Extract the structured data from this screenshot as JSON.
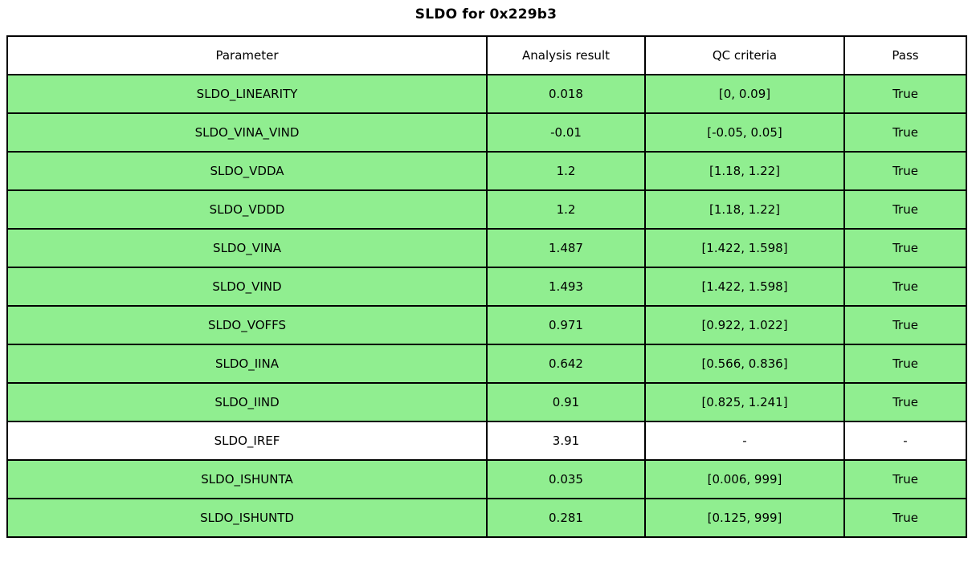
{
  "title": "SLDO for 0x229b3",
  "colors": {
    "pass_row_bg": "#90ee90",
    "neutral_row_bg": "#ffffff",
    "border": "#000000",
    "text": "#000000"
  },
  "table": {
    "headers": [
      "Parameter",
      "Analysis result",
      "QC criteria",
      "Pass"
    ],
    "rows": [
      {
        "parameter": "SLDO_LINEARITY",
        "result": "0.018",
        "qc": "[0, 0.09]",
        "pass": "True",
        "highlight": true
      },
      {
        "parameter": "SLDO_VINA_VIND",
        "result": "-0.01",
        "qc": "[-0.05, 0.05]",
        "pass": "True",
        "highlight": true
      },
      {
        "parameter": "SLDO_VDDA",
        "result": "1.2",
        "qc": "[1.18, 1.22]",
        "pass": "True",
        "highlight": true
      },
      {
        "parameter": "SLDO_VDDD",
        "result": "1.2",
        "qc": "[1.18, 1.22]",
        "pass": "True",
        "highlight": true
      },
      {
        "parameter": "SLDO_VINA",
        "result": "1.487",
        "qc": "[1.422, 1.598]",
        "pass": "True",
        "highlight": true
      },
      {
        "parameter": "SLDO_VIND",
        "result": "1.493",
        "qc": "[1.422, 1.598]",
        "pass": "True",
        "highlight": true
      },
      {
        "parameter": "SLDO_VOFFS",
        "result": "0.971",
        "qc": "[0.922, 1.022]",
        "pass": "True",
        "highlight": true
      },
      {
        "parameter": "SLDO_IINA",
        "result": "0.642",
        "qc": "[0.566, 0.836]",
        "pass": "True",
        "highlight": true
      },
      {
        "parameter": "SLDO_IIND",
        "result": "0.91",
        "qc": "[0.825, 1.241]",
        "pass": "True",
        "highlight": true
      },
      {
        "parameter": "SLDO_IREF",
        "result": "3.91",
        "qc": "-",
        "pass": "-",
        "highlight": false
      },
      {
        "parameter": "SLDO_ISHUNTA",
        "result": "0.035",
        "qc": "[0.006, 999]",
        "pass": "True",
        "highlight": true
      },
      {
        "parameter": "SLDO_ISHUNTD",
        "result": "0.281",
        "qc": "[0.125, 999]",
        "pass": "True",
        "highlight": true
      }
    ]
  },
  "chart_data": {
    "type": "table",
    "title": "SLDO for 0x229b3",
    "columns": [
      "Parameter",
      "Analysis result",
      "QC criteria",
      "Pass"
    ],
    "rows": [
      [
        "SLDO_LINEARITY",
        0.018,
        "[0, 0.09]",
        true
      ],
      [
        "SLDO_VINA_VIND",
        -0.01,
        "[-0.05, 0.05]",
        true
      ],
      [
        "SLDO_VDDA",
        1.2,
        "[1.18, 1.22]",
        true
      ],
      [
        "SLDO_VDDD",
        1.2,
        "[1.18, 1.22]",
        true
      ],
      [
        "SLDO_VINA",
        1.487,
        "[1.422, 1.598]",
        true
      ],
      [
        "SLDO_VIND",
        1.493,
        "[1.422, 1.598]",
        true
      ],
      [
        "SLDO_VOFFS",
        0.971,
        "[0.922, 1.022]",
        true
      ],
      [
        "SLDO_IINA",
        0.642,
        "[0.566, 0.836]",
        true
      ],
      [
        "SLDO_IIND",
        0.91,
        "[0.825, 1.241]",
        true
      ],
      [
        "SLDO_IREF",
        3.91,
        null,
        null
      ],
      [
        "SLDO_ISHUNTA",
        0.035,
        "[0.006, 999]",
        true
      ],
      [
        "SLDO_ISHUNTD",
        0.281,
        "[0.125, 999]",
        true
      ]
    ],
    "layout_hints": {
      "pass_rows_highlighted_green": true,
      "neutral_rows_white": [
        "SLDO_IREF"
      ],
      "grid": true
    }
  }
}
